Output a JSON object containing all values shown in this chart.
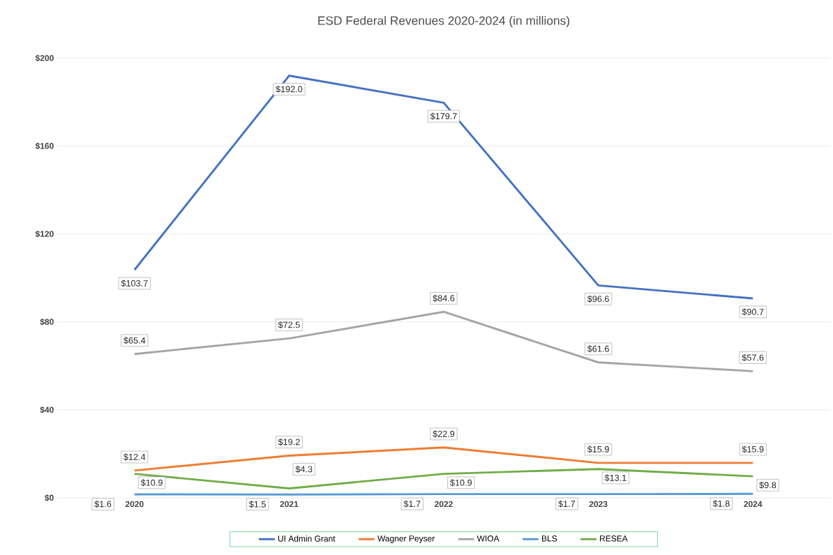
{
  "chart_data": {
    "type": "line",
    "title": "ESD Federal Revenues 2020-2024 (in millions)",
    "categories": [
      "2020",
      "2021",
      "2022",
      "2023",
      "2024"
    ],
    "series": [
      {
        "name": "UI Admin Grant",
        "color": "#4472c4",
        "values": [
          103.7,
          192.0,
          179.7,
          96.6,
          90.7
        ],
        "value_labels": [
          "$103.7",
          "$192.0",
          "$179.7",
          "$96.6",
          "$90.7"
        ]
      },
      {
        "name": "Wagner Peyser",
        "color": "#ed7d31",
        "values": [
          12.4,
          19.2,
          22.9,
          15.9,
          15.9
        ],
        "value_labels": [
          "$12.4",
          "$19.2",
          "$22.9",
          "$15.9",
          "$15.9"
        ]
      },
      {
        "name": "WIOA",
        "color": "#a5a5a5",
        "values": [
          65.4,
          72.5,
          84.6,
          61.6,
          57.6
        ],
        "value_labels": [
          "$65.4",
          "$72.5",
          "$84.6",
          "$61.6",
          "$57.6"
        ]
      },
      {
        "name": "BLS",
        "color": "#5b9bd5",
        "values": [
          1.6,
          1.5,
          1.7,
          1.7,
          1.8
        ],
        "value_labels": [
          "$1.6",
          "$1.5",
          "$1.7",
          "$1.7",
          "$1.8"
        ]
      },
      {
        "name": "RESEA",
        "color": "#70ad47",
        "values": [
          10.9,
          4.3,
          10.9,
          13.1,
          9.8
        ],
        "value_labels": [
          "$10.9",
          "$4.3",
          "$10.9",
          "$13.1",
          "$9.8"
        ]
      }
    ],
    "ylim": [
      0,
      200
    ],
    "yticks": [
      {
        "value": 0,
        "label": "$0"
      },
      {
        "value": 40,
        "label": "$40"
      },
      {
        "value": 80,
        "label": "$80"
      },
      {
        "value": 120,
        "label": "$120"
      },
      {
        "value": 160,
        "label": "$160"
      },
      {
        "value": 200,
        "label": "$200"
      }
    ],
    "grid": "y",
    "legend": "bottom",
    "marker": "none",
    "line_style": "solid"
  }
}
